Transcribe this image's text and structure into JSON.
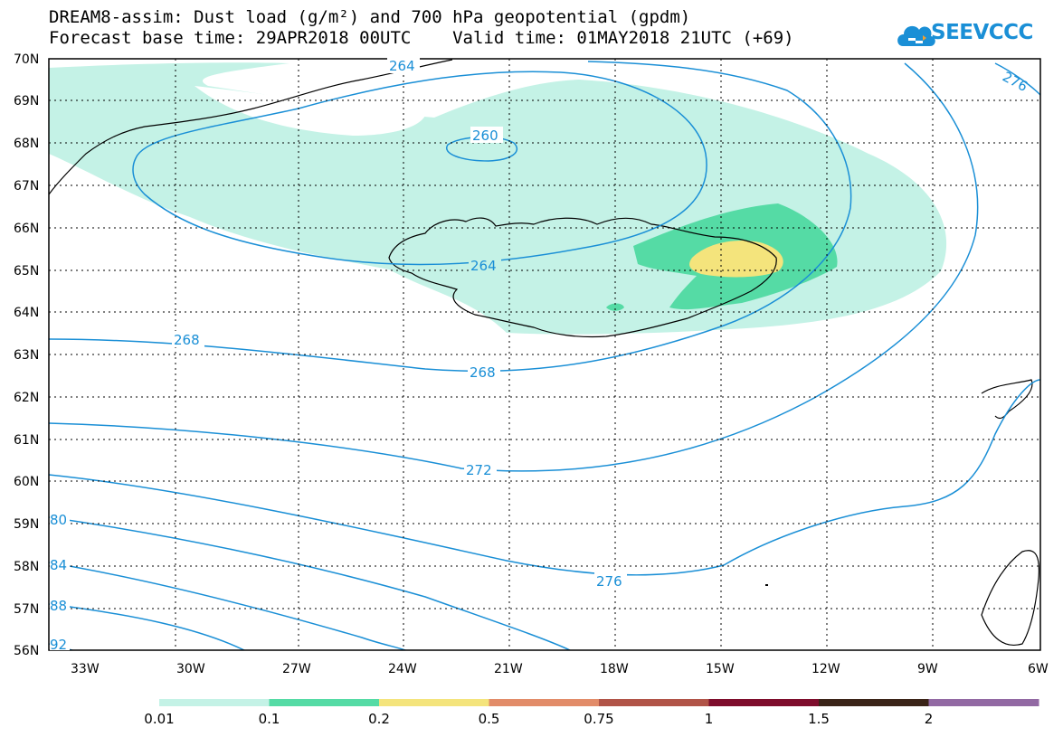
{
  "header": {
    "line1": "DREAM8-assim: Dust load (g/m²) and 700 hPa geopotential (gpdm)",
    "line2": "Forecast base time: 29APR2018 00UTC    Valid time: 01MAY2018 21UTC (+69)"
  },
  "logo": {
    "text": "SEEVCCC",
    "icon": "cloud-icon"
  },
  "map": {
    "lat_labels": [
      "70N",
      "69N",
      "68N",
      "67N",
      "66N",
      "65N",
      "64N",
      "63N",
      "62N",
      "61N",
      "60N",
      "59N",
      "58N",
      "57N",
      "56N"
    ],
    "lon_labels": [
      "33W",
      "30W",
      "27W",
      "24W",
      "21W",
      "18W",
      "15W",
      "12W",
      "9W",
      "6W"
    ],
    "contour_labels": [
      "264",
      "260",
      "264",
      "268",
      "268",
      "272",
      "276",
      "276",
      "80",
      "84",
      "88",
      "92"
    ]
  },
  "colorbar": {
    "colors": [
      "#c4f2e6",
      "#55dba5",
      "#f4e47c",
      "#e28c69",
      "#b15448",
      "#7e0d2c",
      "#3b2418",
      "#9269a3"
    ],
    "labels": [
      "0.01",
      "0.1",
      "0.2",
      "0.5",
      "0.75",
      "1",
      "1.5",
      "2"
    ]
  }
}
